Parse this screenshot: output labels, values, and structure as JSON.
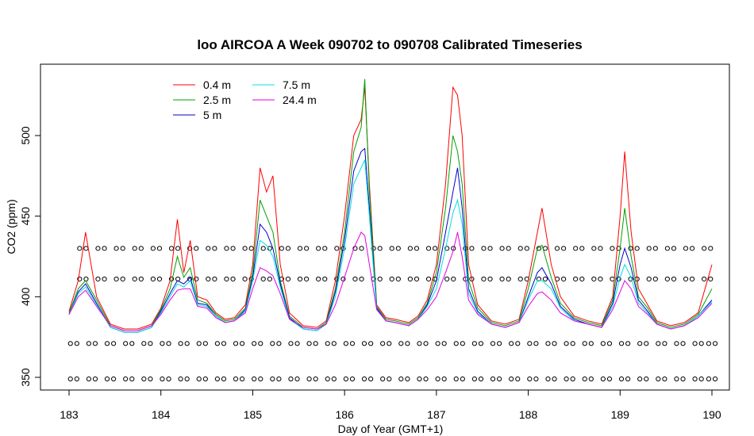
{
  "chart_data": {
    "type": "line",
    "title": "loo AIRCOA A  Week 090702 to 090708  Calibrated Timeseries",
    "xlabel": "Day of Year (GMT+1)",
    "ylabel": "CO2 (ppm)",
    "xlim": [
      183,
      190
    ],
    "ylim": [
      343,
      541
    ],
    "x_ticks": [
      "183",
      "184",
      "185",
      "186",
      "187",
      "188",
      "189",
      "190"
    ],
    "y_ticks": [
      "350",
      "400",
      "450",
      "500"
    ],
    "legend_position": "top-left",
    "grid": false,
    "x": [
      183.0,
      183.1,
      183.18,
      183.3,
      183.45,
      183.6,
      183.75,
      183.9,
      184.0,
      184.1,
      184.18,
      184.25,
      184.32,
      184.4,
      184.5,
      184.6,
      184.7,
      184.8,
      184.92,
      185.0,
      185.08,
      185.15,
      185.22,
      185.3,
      185.4,
      185.55,
      185.7,
      185.8,
      185.9,
      186.0,
      186.1,
      186.18,
      186.22,
      186.27,
      186.35,
      186.45,
      186.55,
      186.7,
      186.8,
      186.9,
      187.0,
      187.1,
      187.18,
      187.23,
      187.28,
      187.35,
      187.45,
      187.6,
      187.75,
      187.9,
      188.0,
      188.1,
      188.15,
      188.25,
      188.35,
      188.5,
      188.65,
      188.8,
      188.92,
      189.0,
      189.05,
      189.12,
      189.2,
      189.3,
      189.4,
      189.55,
      189.7,
      189.85,
      190.0
    ],
    "series": [
      {
        "name": "0.4 m",
        "color": "#ff0000",
        "values": [
          391,
          410,
          440,
          400,
          383,
          380,
          380,
          383,
          393,
          410,
          448,
          415,
          435,
          400,
          398,
          390,
          386,
          387,
          395,
          420,
          480,
          465,
          475,
          420,
          390,
          382,
          381,
          385,
          410,
          450,
          500,
          510,
          530,
          470,
          395,
          387,
          386,
          384,
          388,
          398,
          420,
          470,
          530,
          525,
          500,
          420,
          395,
          385,
          383,
          386,
          410,
          440,
          455,
          420,
          400,
          388,
          385,
          383,
          400,
          450,
          490,
          440,
          405,
          395,
          385,
          382,
          384,
          390,
          420
        ]
      },
      {
        "name": "2.5 m",
        "color": "#00a000",
        "values": [
          390,
          405,
          410,
          398,
          382,
          379,
          379,
          382,
          392,
          405,
          425,
          412,
          418,
          398,
          396,
          389,
          385,
          386,
          393,
          415,
          460,
          450,
          440,
          410,
          388,
          381,
          380,
          384,
          405,
          440,
          490,
          505,
          535,
          465,
          394,
          386,
          385,
          383,
          387,
          396,
          415,
          455,
          500,
          490,
          470,
          410,
          393,
          384,
          382,
          385,
          405,
          430,
          432,
          412,
          396,
          387,
          384,
          382,
          398,
          430,
          455,
          425,
          400,
          393,
          384,
          381,
          383,
          389,
          405
        ]
      },
      {
        "name": "5 m",
        "color": "#0000d0",
        "values": [
          389,
          403,
          408,
          396,
          381,
          378,
          378,
          381,
          391,
          402,
          410,
          408,
          412,
          396,
          395,
          388,
          384,
          385,
          392,
          412,
          445,
          440,
          430,
          408,
          387,
          380,
          379,
          383,
          403,
          435,
          478,
          490,
          492,
          455,
          393,
          385,
          384,
          382,
          386,
          395,
          410,
          440,
          465,
          480,
          455,
          405,
          391,
          383,
          381,
          384,
          400,
          415,
          418,
          408,
          394,
          386,
          383,
          381,
          396,
          420,
          430,
          418,
          398,
          391,
          383,
          380,
          382,
          388,
          398
        ]
      },
      {
        "name": "7.5 m",
        "color": "#00e0e0",
        "values": [
          389,
          402,
          406,
          395,
          381,
          378,
          378,
          381,
          390,
          400,
          408,
          406,
          410,
          395,
          394,
          388,
          384,
          385,
          391,
          410,
          435,
          432,
          425,
          406,
          386,
          380,
          379,
          383,
          400,
          430,
          470,
          480,
          485,
          450,
          392,
          385,
          384,
          382,
          386,
          394,
          405,
          430,
          452,
          460,
          445,
          402,
          390,
          383,
          381,
          384,
          398,
          410,
          410,
          405,
          393,
          385,
          383,
          381,
          394,
          412,
          420,
          412,
          396,
          390,
          383,
          380,
          382,
          388,
          397
        ]
      },
      {
        "name": "24.4 m",
        "color": "#e000e0",
        "values": [
          389,
          400,
          404,
          394,
          382,
          379,
          379,
          382,
          389,
          398,
          404,
          405,
          405,
          394,
          393,
          387,
          384,
          385,
          390,
          405,
          418,
          416,
          413,
          402,
          386,
          381,
          380,
          383,
          395,
          412,
          430,
          440,
          438,
          420,
          392,
          385,
          384,
          382,
          386,
          392,
          400,
          415,
          428,
          440,
          425,
          398,
          389,
          383,
          381,
          384,
          394,
          402,
          403,
          398,
          390,
          385,
          383,
          381,
          392,
          403,
          410,
          405,
          394,
          389,
          383,
          380,
          382,
          387,
          396
        ]
      }
    ],
    "flag_markers": [
      {
        "y": 430,
        "x": [
          183.15,
          183.35,
          183.55,
          183.75,
          183.95,
          184.15,
          184.35,
          184.55,
          184.75,
          184.95,
          185.15,
          185.35,
          185.55,
          185.75,
          185.95,
          186.15,
          186.35,
          186.55,
          186.75,
          186.95,
          187.15,
          187.35,
          187.55,
          187.75,
          187.95,
          188.15,
          188.35,
          188.55,
          188.75,
          188.95,
          189.15,
          189.35,
          189.55,
          189.75,
          189.95
        ]
      },
      {
        "y": 411,
        "x": [
          183.15,
          183.35,
          183.55,
          183.75,
          183.95,
          184.15,
          184.35,
          184.55,
          184.75,
          184.95,
          185.15,
          185.35,
          185.55,
          185.75,
          185.95,
          186.15,
          186.35,
          186.55,
          186.75,
          186.95,
          187.15,
          187.35,
          187.55,
          187.75,
          187.95,
          188.15,
          188.35,
          188.55,
          188.75,
          188.95,
          189.15,
          189.35,
          189.55,
          189.75,
          189.95
        ]
      },
      {
        "y": 371,
        "x": [
          183.05,
          183.25,
          183.45,
          183.65,
          183.85,
          184.05,
          184.25,
          184.45,
          184.65,
          184.85,
          185.05,
          185.25,
          185.45,
          185.65,
          185.85,
          186.05,
          186.25,
          186.45,
          186.65,
          186.85,
          187.05,
          187.25,
          187.45,
          187.65,
          187.85,
          188.05,
          188.25,
          188.45,
          188.65,
          188.85,
          189.05,
          189.25,
          189.45,
          189.65,
          189.85,
          190.0
        ]
      },
      {
        "y": 349,
        "x": [
          183.05,
          183.25,
          183.45,
          183.65,
          183.85,
          184.05,
          184.25,
          184.45,
          184.65,
          184.85,
          185.05,
          185.25,
          185.45,
          185.65,
          185.85,
          186.05,
          186.25,
          186.45,
          186.65,
          186.85,
          187.05,
          187.25,
          187.45,
          187.65,
          187.85,
          188.05,
          188.25,
          188.45,
          188.65,
          188.85,
          189.05,
          189.25,
          189.45,
          189.65,
          189.85,
          190.0
        ]
      }
    ]
  }
}
